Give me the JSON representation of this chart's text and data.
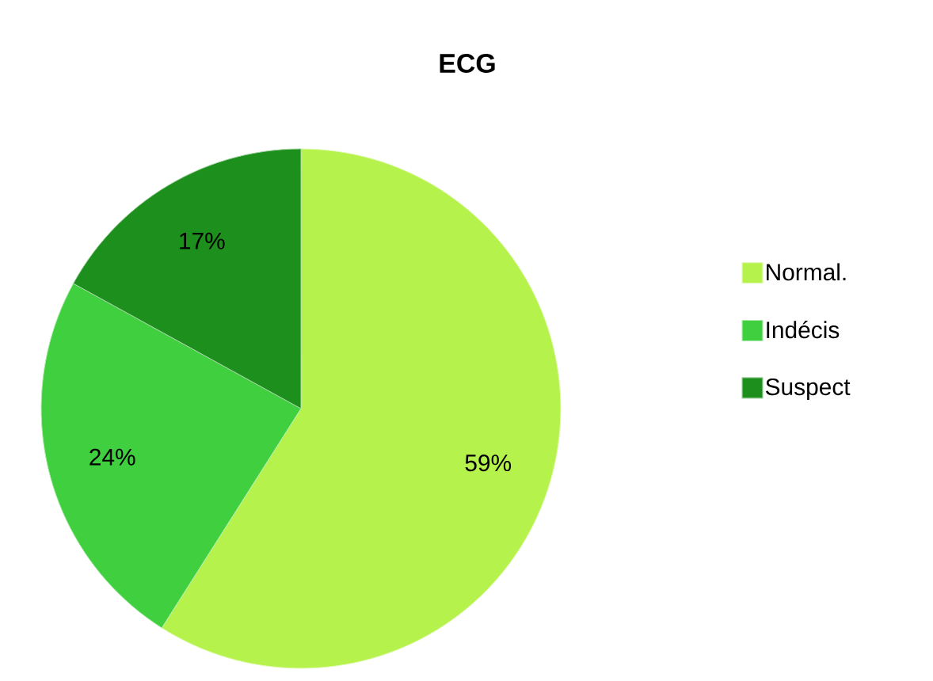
{
  "chart_data": {
    "type": "pie",
    "title": "ECG",
    "categories": [
      "Normal.",
      "Indécis",
      "Suspect"
    ],
    "values": [
      59,
      24,
      17
    ],
    "colors": [
      "#b6f24c",
      "#3fcf3f",
      "#1c8f1c"
    ],
    "value_labels": [
      "59%",
      "24%",
      "17%"
    ],
    "legend": "right"
  }
}
